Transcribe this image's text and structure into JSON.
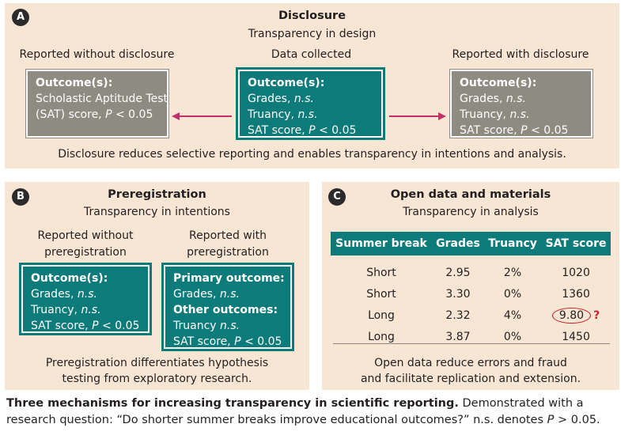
{
  "panelA": {
    "badge": "A",
    "title": "Disclosure",
    "subtitle": "Transparency in design",
    "left_label": "Reported without disclosure",
    "center_label": "Data collected",
    "right_label": "Reported with disclosure",
    "left_box": {
      "heading": "Outcome(s):",
      "line1": "Scholastic Aptitude Test",
      "line2_text": "(SAT) score, ",
      "line2_p": "P",
      "line2_rest": " < 0.05"
    },
    "center_box": {
      "heading": "Outcome(s):",
      "l1": "Grades, ",
      "l1_ns": "n.s.",
      "l2": "Truancy, ",
      "l2_ns": "n.s.",
      "l3": "SAT score, ",
      "l3_p": "P",
      "l3_rest": " < 0.05"
    },
    "right_box": {
      "heading": "Outcome(s):",
      "l1": "Grades, ",
      "l1_ns": "n.s.",
      "l2": "Truancy, ",
      "l2_ns": "n.s.",
      "l3": "SAT score, ",
      "l3_p": "P",
      "l3_rest": " < 0.05"
    },
    "footer": "Disclosure reduces selective reporting and enables transparency in intentions and analysis.",
    "arrow_color": "#c0306a"
  },
  "panelB": {
    "badge": "B",
    "title": "Preregistration",
    "subtitle": "Transparency in intentions",
    "left_label1": "Reported without",
    "left_label2": "preregistration",
    "right_label1": "Reported with",
    "right_label2": "preregistration",
    "left_box": {
      "heading": "Outcome(s):",
      "l1": "Grades, ",
      "l1_ns": "n.s.",
      "l2": "Truancy, ",
      "l2_ns": "n.s.",
      "l3": "SAT score, ",
      "l3_p": "P",
      "l3_rest": " < 0.05"
    },
    "right_box": {
      "heading1": "Primary outcome:",
      "l1": "Grades, ",
      "l1_ns": "n.s.",
      "heading2": "Other outcomes:",
      "l2": "Truancy ",
      "l2_ns": "n.s.",
      "l3": "SAT score, ",
      "l3_p": "P",
      "l3_rest": " < 0.05"
    },
    "footer1": "Preregistration differentiates hypothesis",
    "footer2": "testing from exploratory research."
  },
  "panelC": {
    "badge": "C",
    "title": "Open data and materials",
    "subtitle": "Transparency in analysis",
    "columns": [
      "Summer break",
      "Grades",
      "Truancy",
      "SAT score"
    ],
    "rows": [
      [
        "Short",
        "2.95",
        "2%",
        "1020"
      ],
      [
        "Short",
        "3.30",
        "0%",
        "1360"
      ],
      [
        "Long",
        "2.32",
        "4%",
        "9.80"
      ],
      [
        "Long",
        "3.87",
        "0%",
        "1450"
      ]
    ],
    "flag": "?",
    "footer1": "Open data reduce errors and fraud",
    "footer2": "and facilitate replication and extension."
  },
  "caption": {
    "bold": "Three mechanisms for increasing transparency in scientific reporting.",
    "rest1": " Demonstrated with a research question: “Do shorter summer breaks improve educational outcomes?” n.s. denotes ",
    "p": "P",
    "rest2": " > 0.05."
  },
  "colors": {
    "teal": "#0e7b7b",
    "gray": "#8e8c82",
    "panel_bg": "#f7e6d4",
    "accent_red": "#c8202f"
  }
}
